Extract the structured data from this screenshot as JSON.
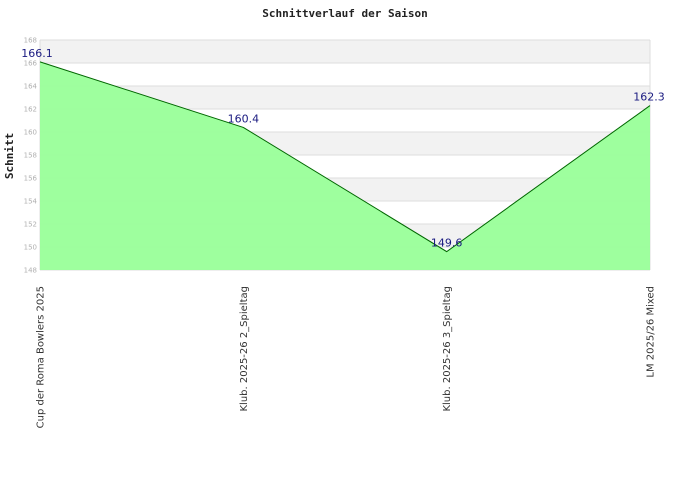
{
  "chart_data": {
    "type": "area",
    "title": "Schnittverlauf der Saison",
    "xlabel": "",
    "ylabel": "Schnitt",
    "categories": [
      "Cup der Roma Bowlers 2025",
      "Klub. 2025-26  2_Spieltag",
      "Klub. 2025-26  3_Spieltag",
      "LM 2025/26 Mixed"
    ],
    "series": [
      {
        "values": [
          166.1,
          160.4,
          149.6,
          162.3
        ]
      }
    ],
    "data_labels": [
      "166.1",
      "160.4",
      "149.6",
      "162.3"
    ],
    "ylim": [
      148,
      168
    ],
    "yticks": [
      "148",
      "150",
      "152",
      "154",
      "156",
      "158",
      "160",
      "162",
      "164",
      "166",
      "168"
    ],
    "grid": true,
    "legend": "none",
    "colors": {
      "fill": "#99ff99",
      "line": "#006600",
      "band": "#f2f2f2",
      "label": "#1a1a80"
    }
  }
}
